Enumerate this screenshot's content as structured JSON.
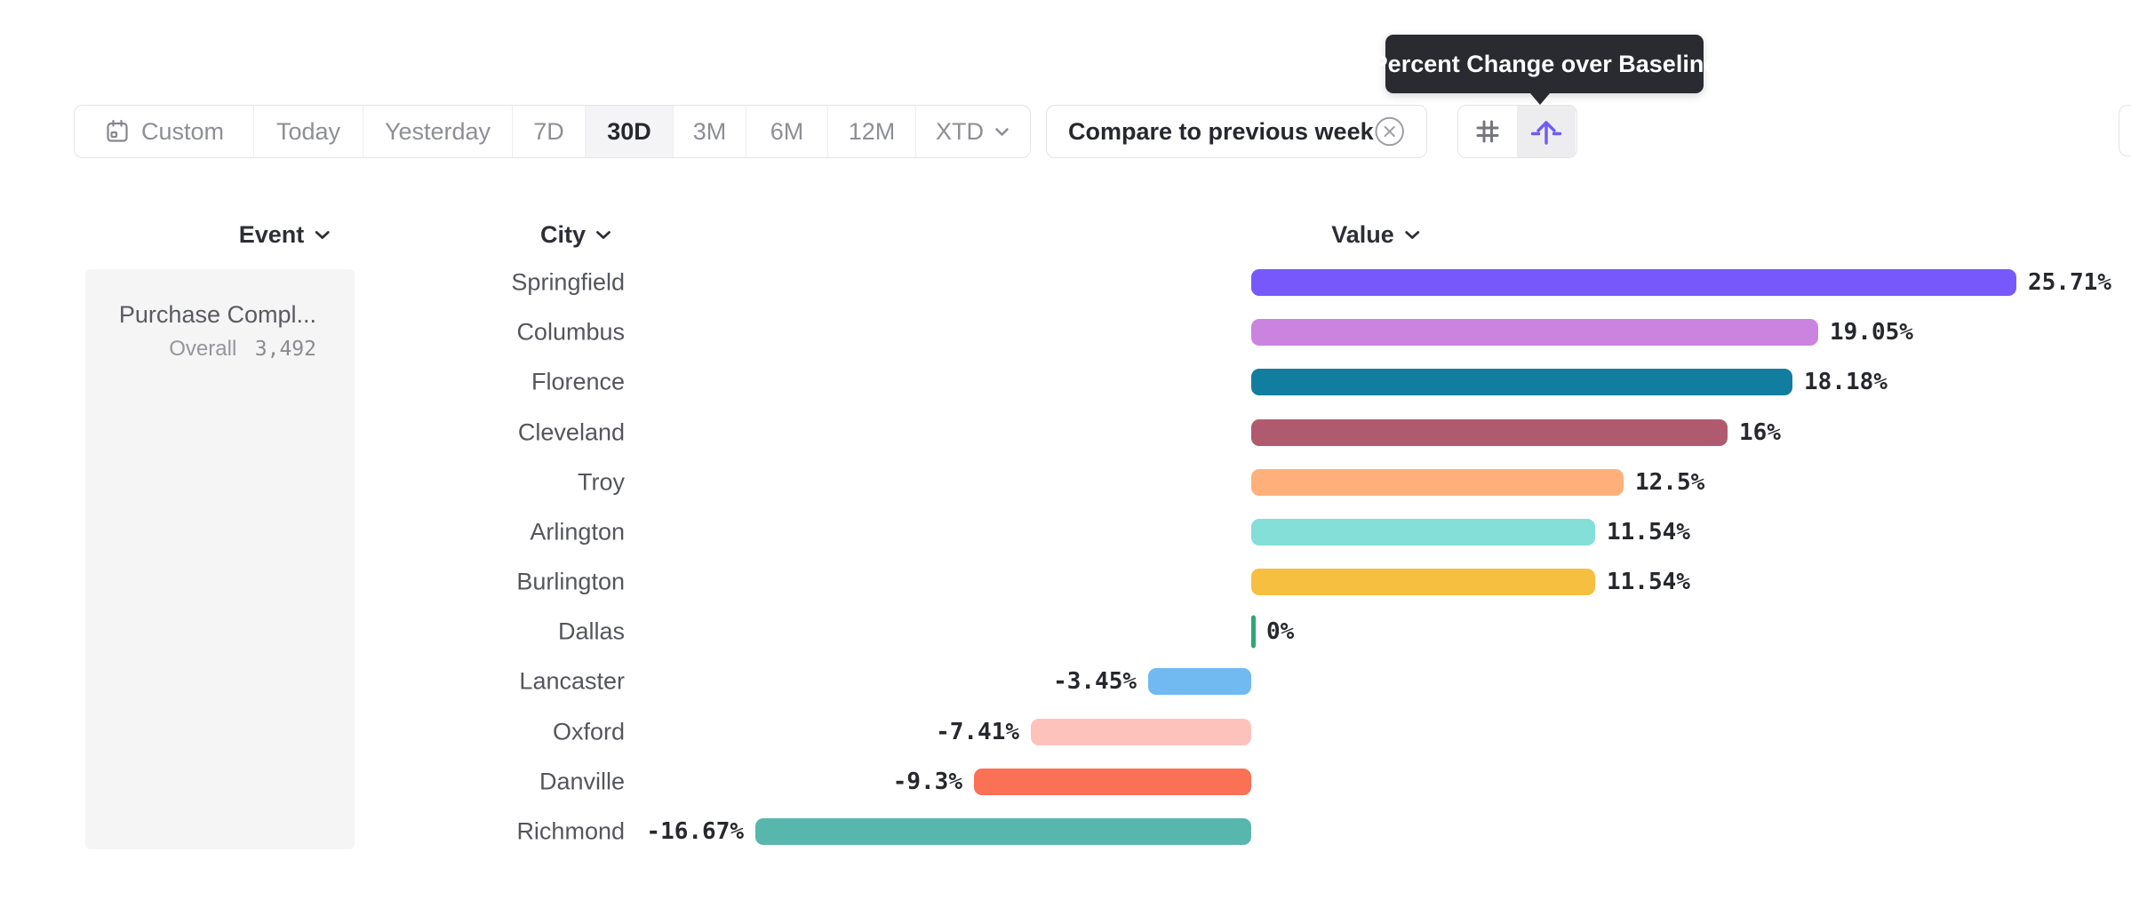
{
  "tooltip": {
    "text": "Percent Change over Baseline"
  },
  "toolbar": {
    "date_ranges": [
      {
        "label": "Custom",
        "icon": "calendar",
        "active": false
      },
      {
        "label": "Today",
        "active": false
      },
      {
        "label": "Yesterday",
        "active": false
      },
      {
        "label": "7D",
        "active": false
      },
      {
        "label": "30D",
        "active": true
      },
      {
        "label": "3M",
        "active": false
      },
      {
        "label": "6M",
        "active": false
      },
      {
        "label": "12M",
        "active": false
      },
      {
        "label": "XTD",
        "chevron": true,
        "active": false
      }
    ],
    "compare_chip": {
      "label": "Compare to previous week"
    },
    "view_buttons": [
      {
        "name": "grid-view",
        "icon": "grid",
        "active": false
      },
      {
        "name": "baseline-view",
        "icon": "baseline-arrow",
        "active": true,
        "tooltip": "Percent Change over Baseline"
      }
    ]
  },
  "columns": [
    {
      "label": "Event"
    },
    {
      "label": "City"
    },
    {
      "label": "Value"
    }
  ],
  "event_panel": {
    "name": "Purchase Compl...",
    "overall_label": "Overall",
    "overall_value": "3,492"
  },
  "chart_data": {
    "type": "bar",
    "orientation": "horizontal",
    "value_format": "percent_change_over_baseline",
    "baseline": 0,
    "categories": [
      "Springfield",
      "Columbus",
      "Florence",
      "Cleveland",
      "Troy",
      "Arlington",
      "Burlington",
      "Dallas",
      "Lancaster",
      "Oxford",
      "Danville",
      "Richmond"
    ],
    "values": [
      25.71,
      19.05,
      18.18,
      16,
      12.5,
      11.54,
      11.54,
      0,
      -3.45,
      -7.41,
      -9.3,
      -16.67
    ],
    "labels": [
      "25.71%",
      "19.05%",
      "18.18%",
      "16%",
      "12.5%",
      "11.54%",
      "11.54%",
      "0%",
      "-3.45%",
      "-7.41%",
      "-9.3%",
      "-16.67%"
    ],
    "bar_colors": [
      "#7759fb",
      "#ca83de",
      "#117d9f",
      "#b05a70",
      "#ffb07a",
      "#83dfd8",
      "#f7bf40",
      "#2fa873",
      "#70baf1",
      "#fdc2bb",
      "#fa7156",
      "#58b7ac"
    ],
    "xlim": [
      -16.67,
      25.71
    ],
    "grid": false,
    "legend": false
  },
  "colors": {
    "accent": "#6e5cf3",
    "zero_marker": "#2fa873",
    "tooltip_bg": "#2a2b31"
  }
}
